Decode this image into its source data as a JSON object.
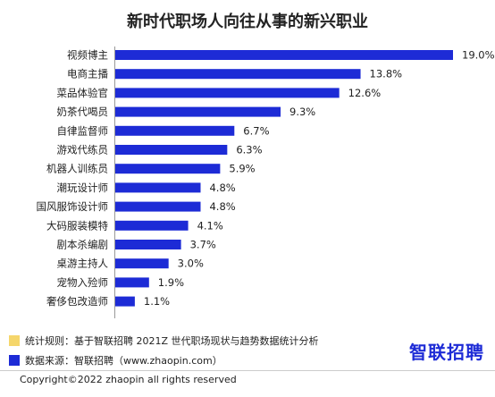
{
  "title": "新时代职场人向往从事的新兴职业",
  "chart_data": {
    "type": "bar",
    "orientation": "horizontal",
    "categories": [
      "视频博主",
      "电商主播",
      "菜品体验官",
      "奶茶代喝员",
      "自律监督师",
      "游戏代练员",
      "机器人训练员",
      "潮玩设计师",
      "国风服饰设计师",
      "大码服装模特",
      "剧本杀编剧",
      "桌游主持人",
      "宠物入殓师",
      "奢侈包改造师"
    ],
    "values": [
      19.0,
      13.8,
      12.6,
      9.3,
      6.7,
      6.3,
      5.9,
      4.8,
      4.8,
      4.1,
      3.7,
      3.0,
      1.9,
      1.1
    ],
    "value_labels": [
      "19.0%",
      "13.8%",
      "12.6%",
      "9.3%",
      "6.7%",
      "6.3%",
      "5.9%",
      "4.8%",
      "4.8%",
      "4.1%",
      "3.7%",
      "3.0%",
      "1.9%",
      "1.1%"
    ],
    "xlim": [
      0,
      19.0
    ],
    "bar_color": "#1d2bd6",
    "grid": false
  },
  "notes": {
    "rule": {
      "text": "统计规则：基于智联招聘 2021Z 世代职场现状与趋势数据统计分析",
      "color": "#f5d66b"
    },
    "source": {
      "text": "数据来源：智联招聘（www.zhaopin.com）",
      "color": "#1d2bd6"
    }
  },
  "logo": "智联招聘",
  "copyright": "Copyright©2022 zhaopin all rights reserved"
}
